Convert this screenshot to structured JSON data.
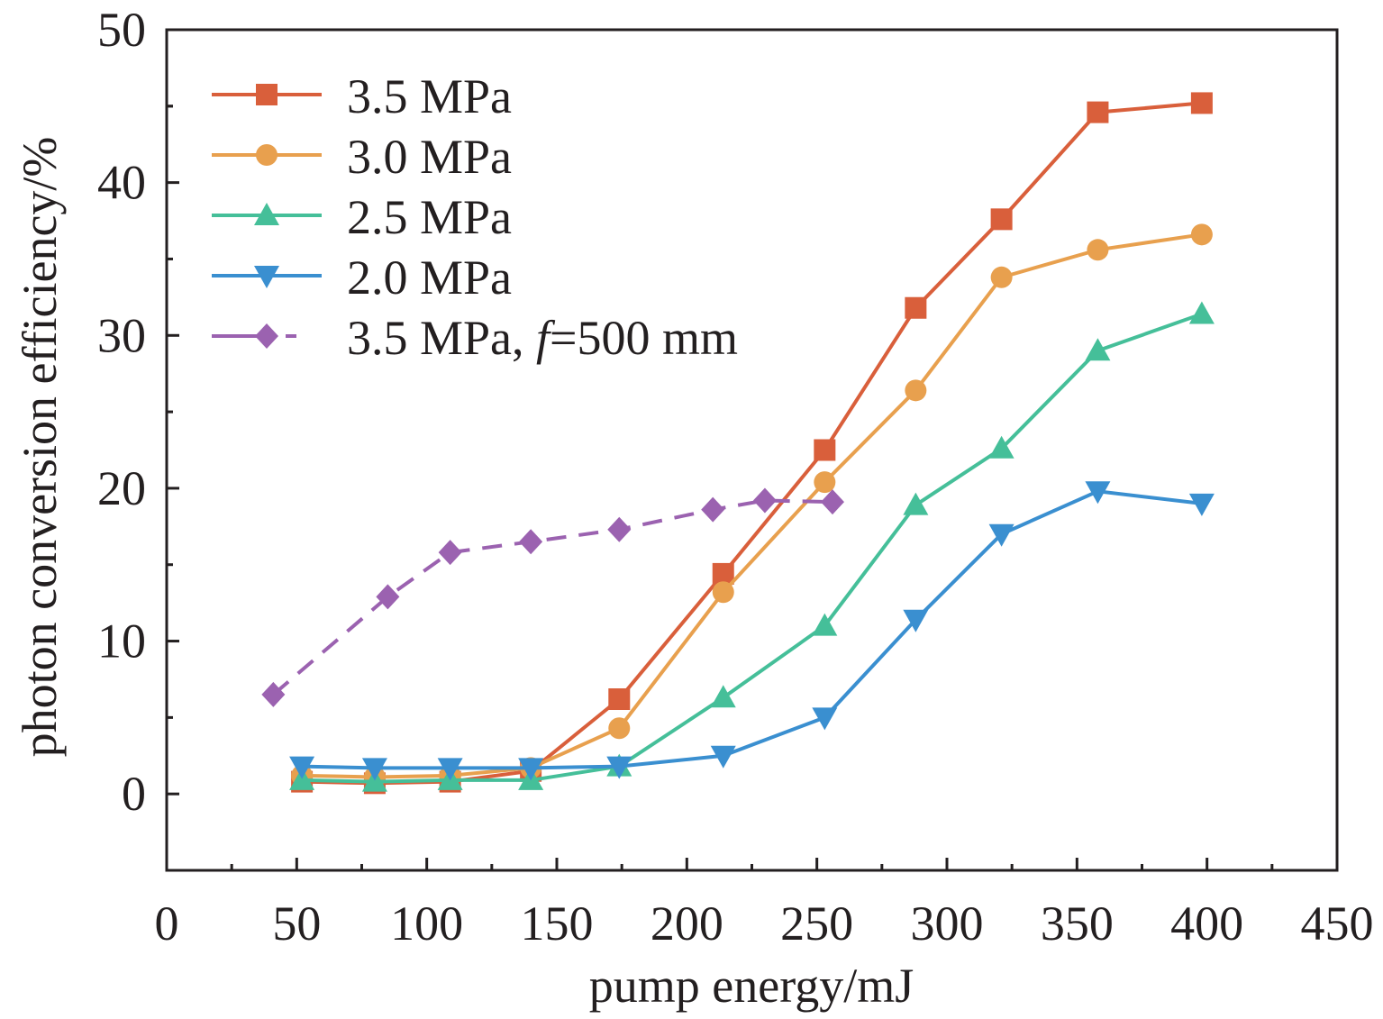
{
  "chart_data": {
    "type": "line",
    "xlabel": "pump energy/mJ",
    "ylabel": "photon conversion efficiency/%",
    "xlim": [
      0,
      450
    ],
    "ylim": [
      -5,
      50
    ],
    "xticks": [
      0,
      50,
      100,
      150,
      200,
      250,
      300,
      350,
      400,
      450
    ],
    "yticks": [
      0,
      10,
      20,
      30,
      40,
      50
    ],
    "legend_position": "top-left",
    "series": [
      {
        "name": "3.5 MPa",
        "marker": "square",
        "dash": false,
        "color": "#d95f3b",
        "x": [
          52,
          80,
          109,
          140,
          174,
          214,
          253,
          288,
          321,
          358,
          398
        ],
        "y": [
          0.8,
          0.7,
          0.8,
          1.5,
          6.2,
          14.4,
          22.5,
          31.8,
          37.6,
          44.6,
          45.2
        ]
      },
      {
        "name": "3.0 MPa",
        "marker": "circle",
        "dash": false,
        "color": "#e8a04e",
        "x": [
          52,
          80,
          109,
          140,
          174,
          214,
          253,
          288,
          321,
          358,
          398
        ],
        "y": [
          1.2,
          1.1,
          1.2,
          1.7,
          4.3,
          13.2,
          20.4,
          26.4,
          33.8,
          35.6,
          36.6
        ]
      },
      {
        "name": "2.5 MPa",
        "marker": "triangle-up",
        "dash": false,
        "color": "#45bf99",
        "x": [
          52,
          80,
          109,
          140,
          174,
          214,
          253,
          288,
          321,
          358,
          398
        ],
        "y": [
          0.9,
          0.8,
          0.9,
          0.9,
          1.8,
          6.3,
          11.0,
          18.9,
          22.6,
          29.0,
          31.4
        ]
      },
      {
        "name": "2.0 MPa",
        "marker": "triangle-down",
        "dash": false,
        "color": "#3a8fd0",
        "x": [
          52,
          80,
          109,
          140,
          174,
          214,
          253,
          288,
          321,
          358,
          398
        ],
        "y": [
          1.8,
          1.7,
          1.7,
          1.7,
          1.8,
          2.5,
          5.0,
          11.4,
          17.0,
          19.8,
          19.0
        ]
      },
      {
        "name": "3.5 MPa, ",
        "name_italic": "f",
        "name_suffix": "=500 mm",
        "marker": "diamond",
        "dash": true,
        "color": "#9b62b0",
        "x": [
          41,
          85,
          109,
          140,
          174,
          210,
          230,
          256
        ],
        "y": [
          6.5,
          12.9,
          15.8,
          16.5,
          17.3,
          18.6,
          19.2,
          19.1
        ]
      }
    ]
  }
}
